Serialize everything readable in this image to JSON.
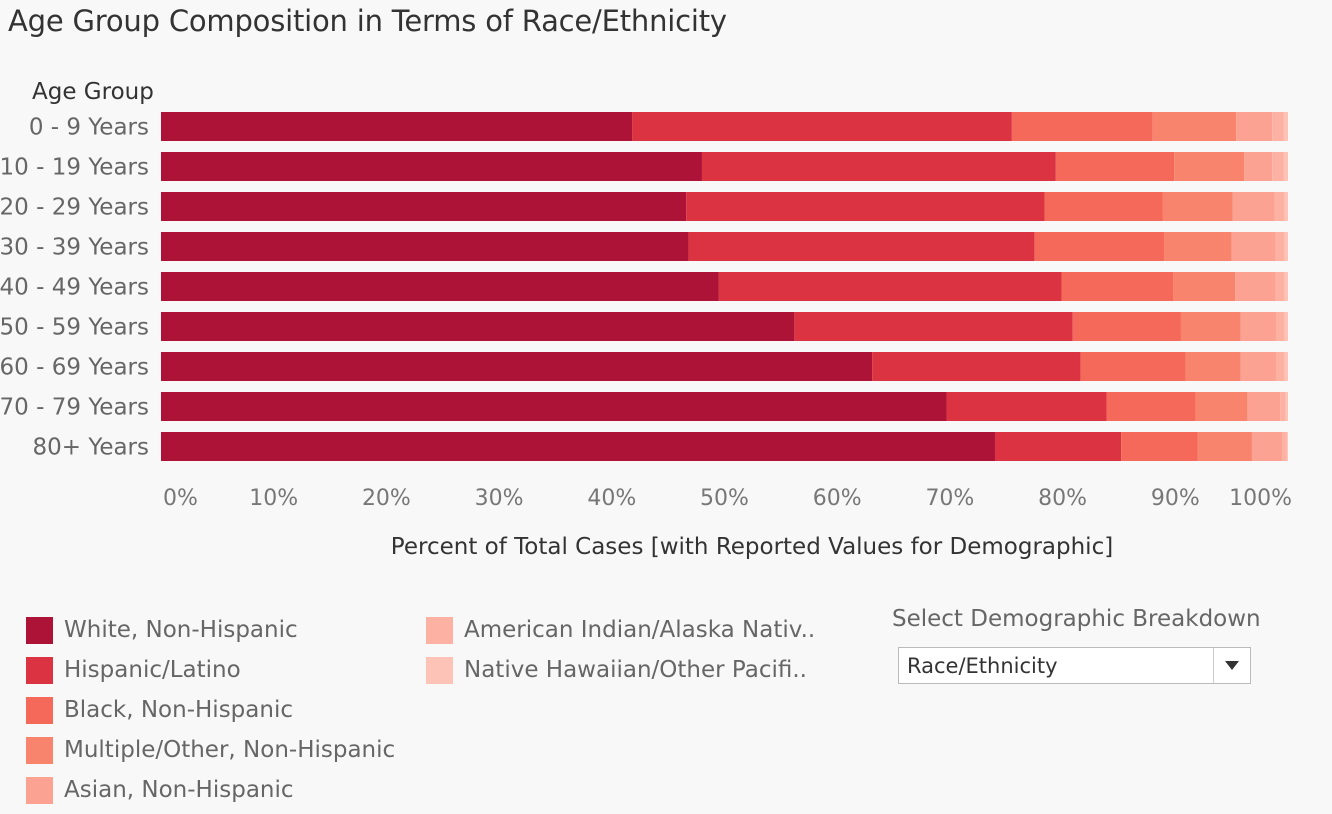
{
  "title": "Age Group Composition in Terms of Race/Ethnicity",
  "demographic": {
    "label": "Select Demographic Breakdown",
    "selected": "Race/Ethnicity"
  },
  "legend": [
    {
      "label": "White, Non-Hispanic",
      "color": "#ad1237"
    },
    {
      "label": "Hispanic/Latino",
      "color": "#dc3342"
    },
    {
      "label": "Black, Non-Hispanic",
      "color": "#f4695a"
    },
    {
      "label": "Multiple/Other, Non-Hispanic",
      "color": "#f8846e"
    },
    {
      "label": "Asian, Non-Hispanic",
      "color": "#fba292"
    },
    {
      "label": "American Indian/Alaska Nativ..",
      "color": "#fcb1a3"
    },
    {
      "label": "Native Hawaiian/Other Pacifi..",
      "color": "#fdc3b6"
    }
  ],
  "chart_data": {
    "type": "bar",
    "orientation": "horizontal",
    "stacked": true,
    "row_header": "Age Group",
    "xlabel": "Percent of Total Cases [with Reported Values for Demographic]",
    "xlim": [
      0,
      100
    ],
    "xticks": [
      "0%",
      "10%",
      "20%",
      "30%",
      "40%",
      "50%",
      "60%",
      "70%",
      "80%",
      "90%",
      "100%"
    ],
    "categories": [
      "0 - 9 Years",
      "10 - 19 Years",
      "20 - 29 Years",
      "30 - 39 Years",
      "40 - 49 Years",
      "50 - 59 Years",
      "60 - 69 Years",
      "70 - 79 Years",
      "80+ Years"
    ],
    "series": [
      {
        "name": "White, Non-Hispanic",
        "values": [
          41.8,
          48.0,
          46.6,
          46.8,
          49.5,
          56.2,
          63.1,
          69.7,
          74.0
        ]
      },
      {
        "name": "Hispanic/Latino",
        "values": [
          33.7,
          31.4,
          31.8,
          30.7,
          30.4,
          24.7,
          18.5,
          14.2,
          11.2
        ]
      },
      {
        "name": "Black, Non-Hispanic",
        "values": [
          12.5,
          10.5,
          10.5,
          11.5,
          9.9,
          9.6,
          9.3,
          7.9,
          6.8
        ]
      },
      {
        "name": "Multiple/Other, Non-Hispanic",
        "values": [
          7.4,
          6.2,
          6.2,
          6.0,
          5.5,
          5.3,
          4.9,
          4.6,
          4.8
        ]
      },
      {
        "name": "Asian, Non-Hispanic",
        "values": [
          3.2,
          2.5,
          3.7,
          3.9,
          3.6,
          3.2,
          3.2,
          2.9,
          2.7
        ]
      },
      {
        "name": "American Indian/Alaska Nativ..",
        "values": [
          1.0,
          1.0,
          0.9,
          0.8,
          0.8,
          0.7,
          0.7,
          0.5,
          0.4
        ]
      },
      {
        "name": "Native Hawaiian/Other Pacifi..",
        "values": [
          0.4,
          0.4,
          0.3,
          0.3,
          0.3,
          0.3,
          0.3,
          0.2,
          0.1
        ]
      }
    ],
    "colors": [
      "#ad1237",
      "#dc3342",
      "#f4695a",
      "#f8846e",
      "#fba292",
      "#fcb1a3",
      "#fdc3b6"
    ],
    "grid": false,
    "legend_position": "bottom-left"
  }
}
